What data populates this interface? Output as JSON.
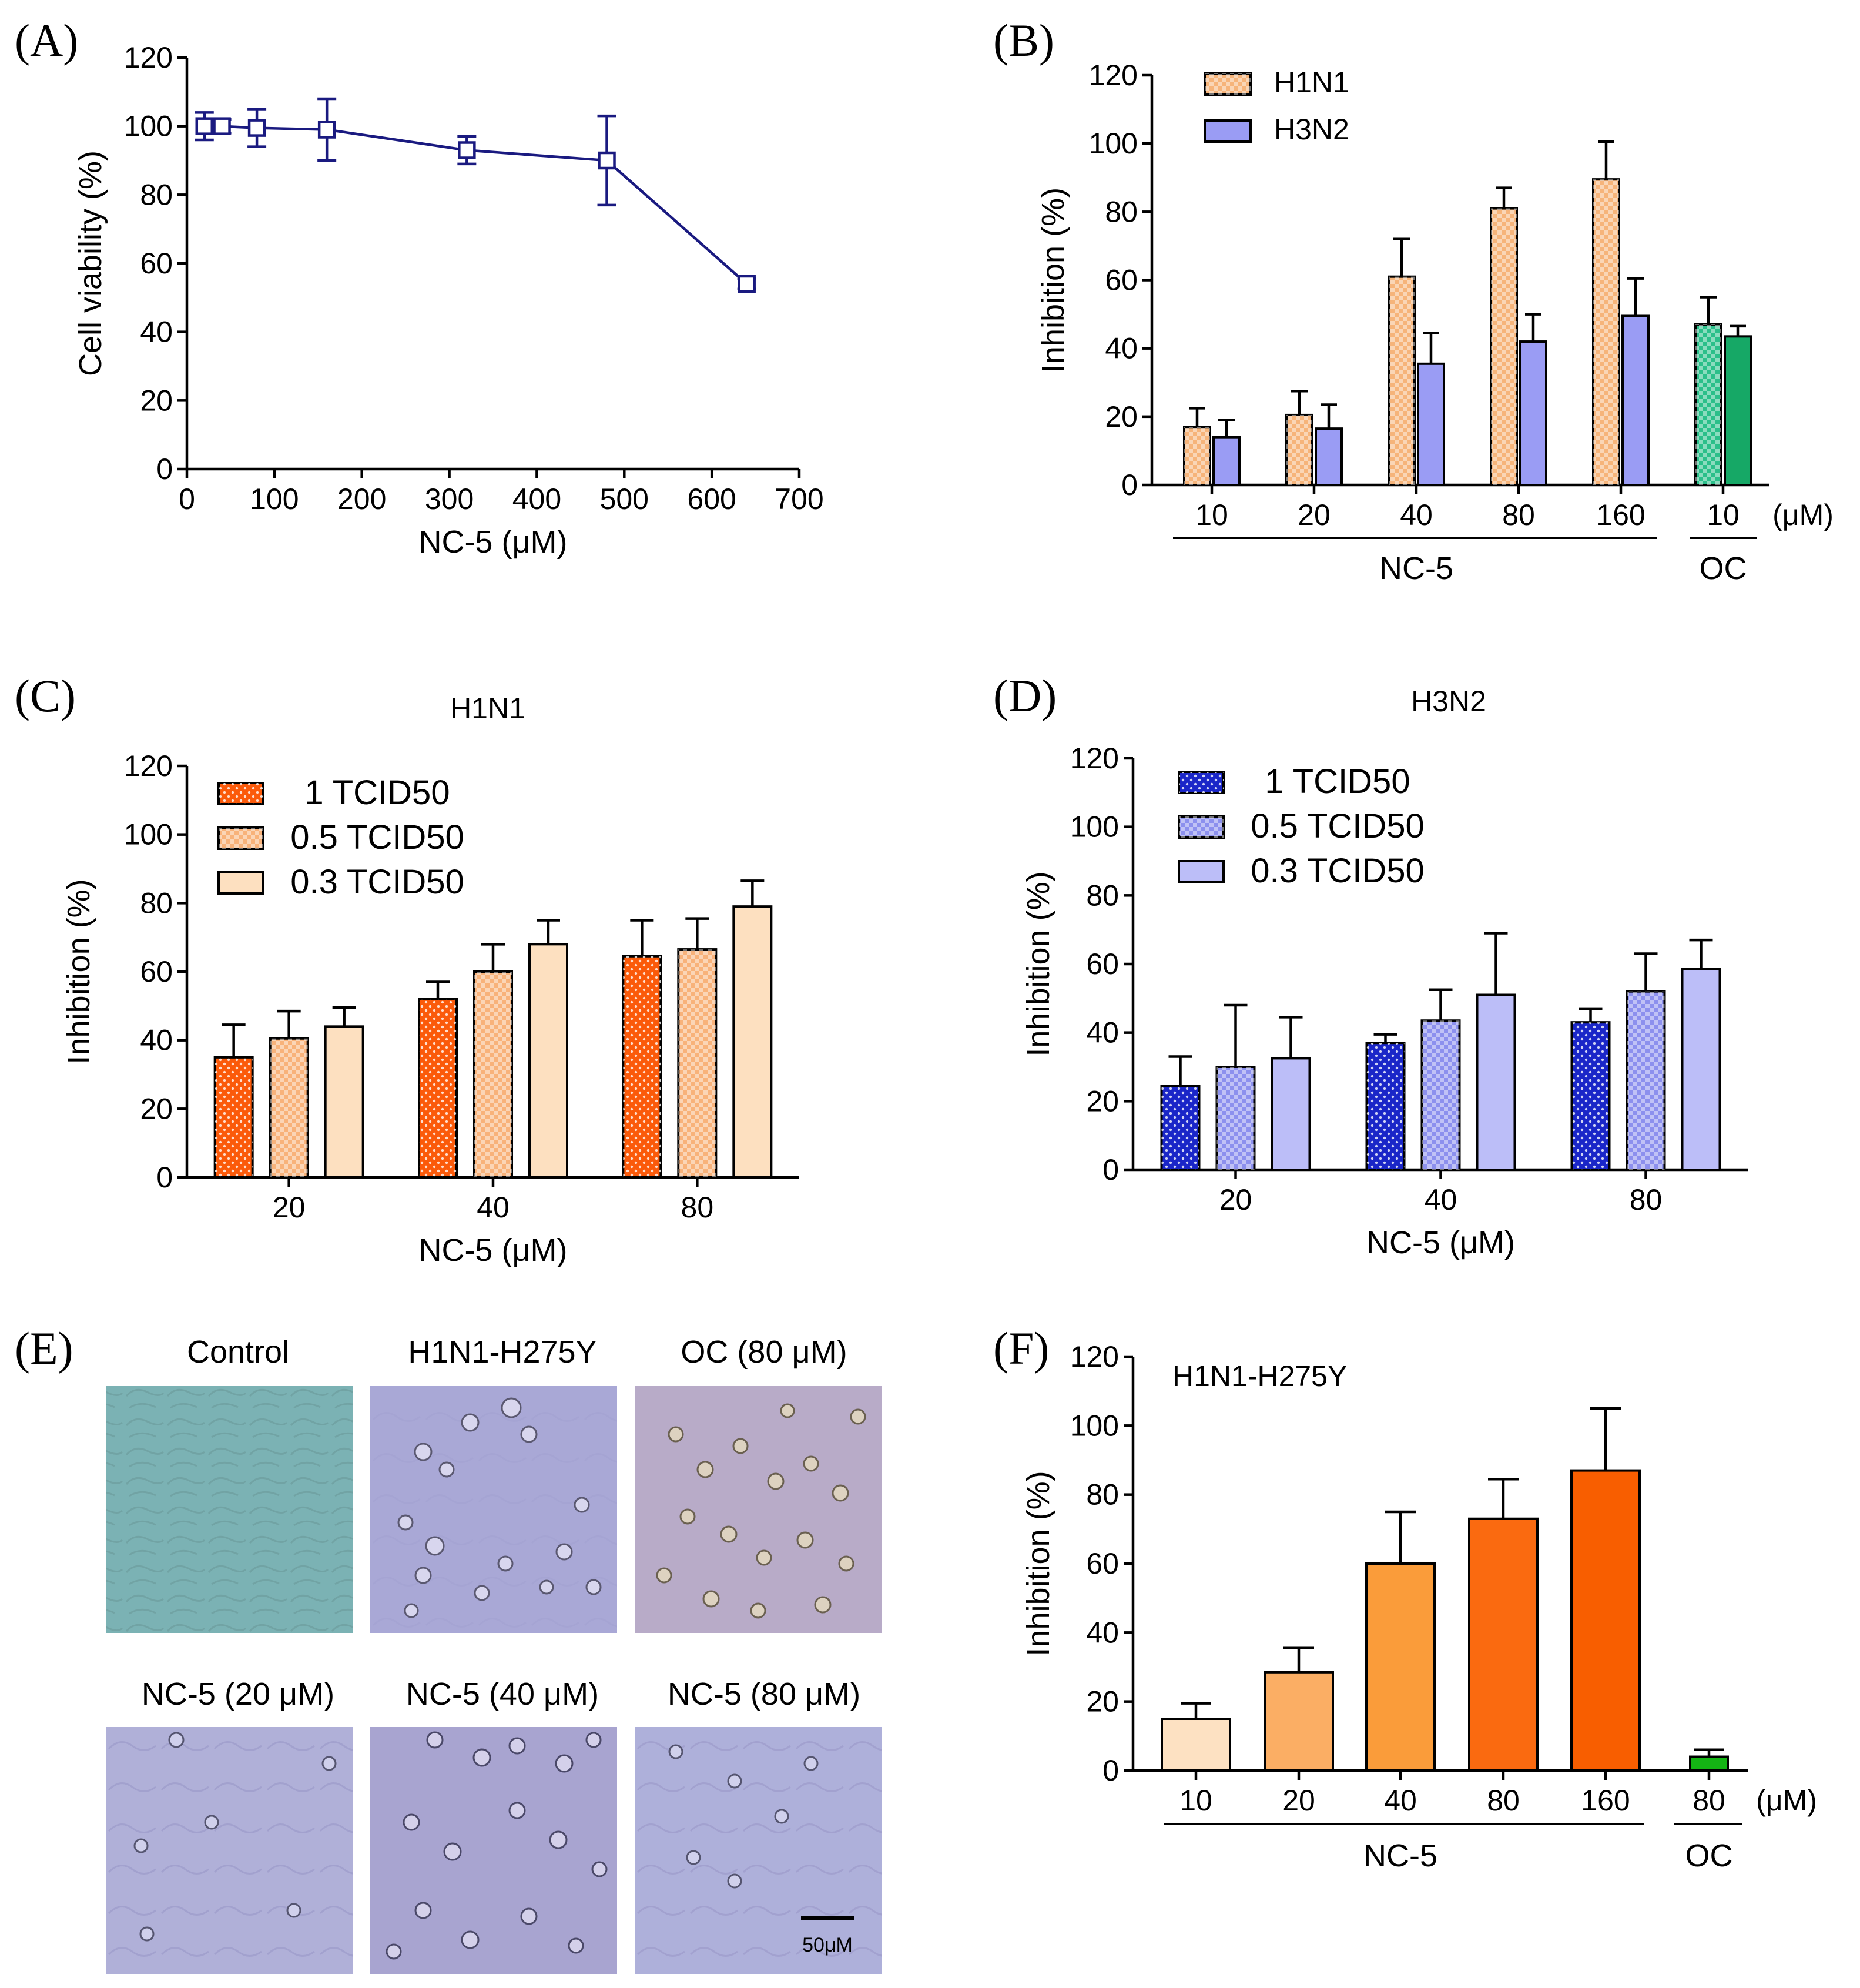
{
  "panel_labels": [
    "(A)",
    "(B)",
    "(C)",
    "(D)",
    "(E)",
    "(F)"
  ],
  "colors": {
    "line": "#1a1a80",
    "h1n1_b": "#f6b47a",
    "h3n2_b": "#9a9cf4",
    "oc_b_1": "#2bbf8a",
    "oc_b_2": "#16a866",
    "c_1": "#fb5a0a",
    "c_05": "#f8b27a",
    "c_03": "#fde0c0",
    "d_1": "#1a26c8",
    "d_05": "#8c90ee",
    "d_03": "#bcbef8",
    "f_10": "#fde1c2",
    "f_20": "#fbae64",
    "f_40": "#fa9c3a",
    "f_80": "#fa6a10",
    "f_160": "#f85e00",
    "f_oc": "#14b414"
  },
  "chart_data": [
    {
      "id": "A",
      "type": "line",
      "title": "",
      "xlabel": "NC-5 (μM)",
      "ylabel": "Cell viability (%)",
      "xlim": [
        0,
        700
      ],
      "ylim": [
        0,
        120
      ],
      "xticks": [
        "0",
        "100",
        "200",
        "300",
        "400",
        "500",
        "600",
        "700"
      ],
      "yticks": [
        "0",
        "20",
        "40",
        "60",
        "80",
        "100",
        "120"
      ],
      "x": [
        20,
        40,
        80,
        160,
        320,
        480,
        640
      ],
      "y": [
        100,
        100,
        99.5,
        99,
        93,
        90,
        54
      ],
      "error": [
        4,
        2,
        5.5,
        9,
        4,
        13,
        1.5
      ]
    },
    {
      "id": "B",
      "type": "bar",
      "title": "",
      "xlabel": "",
      "ylabel": "Inhibition (%)",
      "ylim": [
        0,
        120
      ],
      "yticks": [
        "0",
        "20",
        "40",
        "60",
        "80",
        "100",
        "120"
      ],
      "categories": [
        "10",
        "20",
        "40",
        "80",
        "160",
        "10"
      ],
      "unit": "(μM)",
      "groups": [
        {
          "label": "NC-5"
        },
        {
          "label": "OC"
        }
      ],
      "legend": [
        "H1N1",
        "H3N2"
      ],
      "series": [
        {
          "name": "H1N1",
          "values": [
            17,
            20.5,
            61,
            81,
            89.5,
            47
          ],
          "error": [
            5.5,
            7,
            11,
            6,
            11,
            8
          ]
        },
        {
          "name": "H3N2",
          "values": [
            14,
            16.5,
            35.5,
            42,
            49.5,
            43.5
          ],
          "error": [
            5,
            7,
            9,
            8,
            11,
            3
          ]
        }
      ]
    },
    {
      "id": "C",
      "type": "bar",
      "title": "H1N1",
      "xlabel": "NC-5 (μM)",
      "ylabel": "Inhibition (%)",
      "ylim": [
        0,
        120
      ],
      "yticks": [
        "0",
        "20",
        "40",
        "60",
        "80",
        "100",
        "120"
      ],
      "categories": [
        "20",
        "40",
        "80"
      ],
      "legend": [
        "1 TCID50",
        "0.5 TCID50",
        "0.3 TCID50"
      ],
      "series": [
        {
          "name": "1 TCID50",
          "values": [
            35,
            52,
            64.5
          ],
          "error": [
            9.5,
            5,
            10.5
          ]
        },
        {
          "name": "0.5 TCID50",
          "values": [
            40.5,
            60,
            66.5
          ],
          "error": [
            8,
            8,
            9
          ]
        },
        {
          "name": "0.3 TCID50",
          "values": [
            44,
            68,
            79
          ],
          "error": [
            5.5,
            7,
            7.5
          ]
        }
      ]
    },
    {
      "id": "D",
      "type": "bar",
      "title": "H3N2",
      "xlabel": "NC-5 (μM)",
      "ylabel": "Inhibition (%)",
      "ylim": [
        0,
        120
      ],
      "yticks": [
        "0",
        "20",
        "40",
        "60",
        "80",
        "100",
        "120"
      ],
      "categories": [
        "20",
        "40",
        "80"
      ],
      "legend": [
        "1 TCID50",
        "0.5 TCID50",
        "0.3 TCID50"
      ],
      "series": [
        {
          "name": "1 TCID50",
          "values": [
            24.5,
            37,
            43
          ],
          "error": [
            8.5,
            2.5,
            4
          ]
        },
        {
          "name": "0.5 TCID50",
          "values": [
            30,
            43.5,
            52
          ],
          "error": [
            18,
            9,
            11
          ]
        },
        {
          "name": "0.3 TCID50",
          "values": [
            32.5,
            51,
            58.5
          ],
          "error": [
            12,
            18,
            8.5
          ]
        }
      ]
    },
    {
      "id": "F",
      "type": "bar",
      "title": "H1N1-H275Y",
      "xlabel": "",
      "ylabel": "Inhibition (%)",
      "ylim": [
        0,
        120
      ],
      "yticks": [
        "0",
        "20",
        "40",
        "60",
        "80",
        "100",
        "120"
      ],
      "categories": [
        "10",
        "20",
        "40",
        "80",
        "160",
        "80"
      ],
      "unit": "(μM)",
      "groups": [
        {
          "label": "NC-5"
        },
        {
          "label": "OC"
        }
      ],
      "series": [
        {
          "name": "",
          "values": [
            15,
            28.5,
            60,
            73,
            87,
            4
          ],
          "error": [
            4.5,
            7,
            15,
            11.5,
            18,
            2
          ]
        }
      ]
    }
  ],
  "images": {
    "labels": [
      "Control",
      "H1N1-H275Y",
      "OC (80 μM)",
      "NC-5 (20 μM)",
      "NC-5 (40 μM)",
      "NC-5 (80 μM)"
    ],
    "scale_bar": "50μM"
  }
}
